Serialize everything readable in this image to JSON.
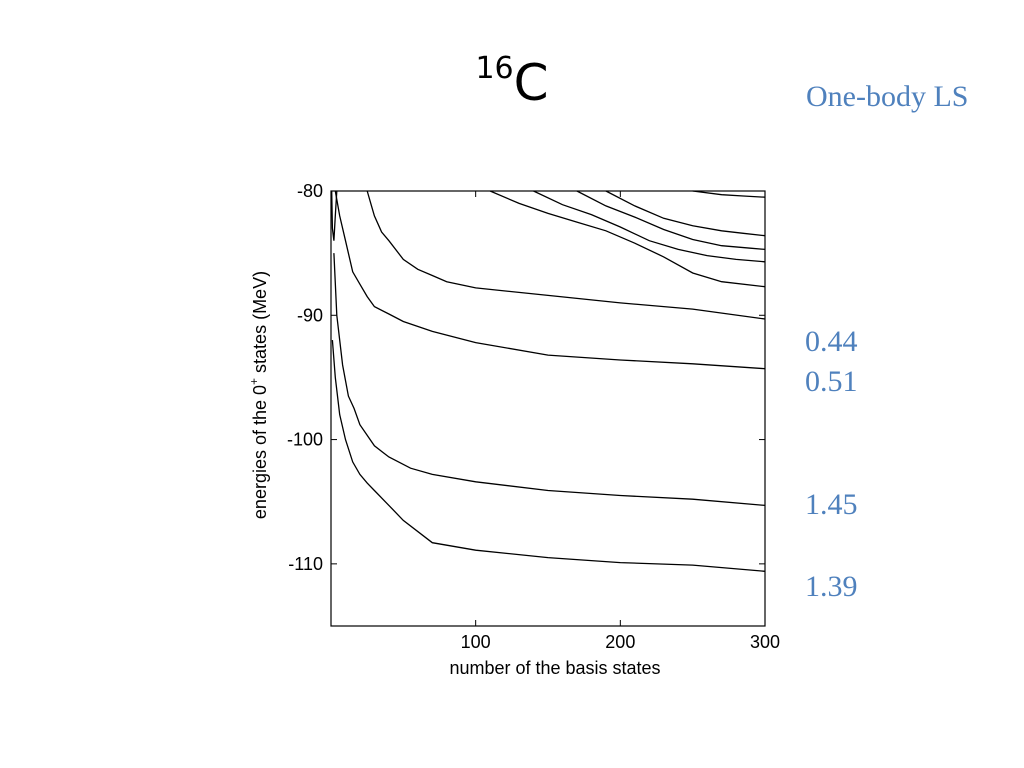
{
  "slide": {
    "title_mass": "16",
    "title_element": "C",
    "subtitle": "One-body LS",
    "side_values": [
      "0.44",
      "0.51",
      "1.45",
      "1.39"
    ],
    "text_color": "#4f81bd"
  },
  "chart_data": {
    "type": "line",
    "title": "",
    "xlabel": "number of the basis states",
    "ylabel_parts": [
      "energies of the 0",
      "+",
      " states (MeV)"
    ],
    "xlim": [
      0,
      300
    ],
    "ylim": [
      -115,
      -80
    ],
    "xticks": [
      100,
      200,
      300
    ],
    "yticks": [
      -80,
      -90,
      -100,
      -110
    ],
    "grid": false,
    "series": [
      {
        "x": [
          1,
          3,
          6,
          10,
          15,
          20,
          25,
          30,
          40,
          50,
          70,
          100,
          150,
          200,
          250,
          300
        ],
        "y": [
          -92,
          -95,
          -98,
          -100,
          -101.8,
          -102.8,
          -103.5,
          -104.1,
          -105.3,
          -106.5,
          -108.3,
          -108.9,
          -109.5,
          -109.9,
          -110.1,
          -110.6
        ]
      },
      {
        "x": [
          2,
          4,
          8,
          12,
          16,
          20,
          30,
          40,
          55,
          70,
          100,
          150,
          200,
          250,
          300
        ],
        "y": [
          -85,
          -90,
          -94,
          -96.5,
          -97.5,
          -98.8,
          -100.5,
          -101.4,
          -102.3,
          -102.8,
          -103.4,
          -104.1,
          -104.5,
          -104.8,
          -105.3
        ]
      },
      {
        "x": [
          3,
          6,
          10,
          15,
          20,
          25,
          30,
          40,
          50,
          70,
          100,
          150,
          200,
          250,
          300
        ],
        "y": [
          -80,
          -82,
          -84,
          -86.5,
          -87.5,
          -88.5,
          -89.3,
          -89.9,
          -90.5,
          -91.3,
          -92.2,
          -93.2,
          -93.6,
          -93.9,
          -94.3
        ]
      },
      {
        "x": [
          25,
          28,
          30,
          35,
          40,
          50,
          60,
          70,
          80,
          100,
          150,
          200,
          250,
          300
        ],
        "y": [
          -80,
          -81.2,
          -82,
          -83.3,
          -84,
          -85.5,
          -86.3,
          -86.8,
          -87.3,
          -87.8,
          -88.4,
          -89,
          -89.5,
          -90.3
        ]
      },
      {
        "x": [
          110,
          130,
          150,
          170,
          190,
          210,
          230,
          250,
          270,
          300
        ],
        "y": [
          -80,
          -81,
          -81.8,
          -82.5,
          -83.2,
          -84.2,
          -85.3,
          -86.6,
          -87.3,
          -87.7
        ]
      },
      {
        "x": [
          140,
          160,
          180,
          200,
          220,
          240,
          260,
          280,
          300
        ],
        "y": [
          -80,
          -81.1,
          -81.9,
          -82.9,
          -84,
          -84.7,
          -85.2,
          -85.5,
          -85.7
        ]
      },
      {
        "x": [
          170,
          190,
          210,
          230,
          250,
          270,
          290,
          300
        ],
        "y": [
          -80,
          -81.2,
          -82.1,
          -83.1,
          -83.9,
          -84.4,
          -84.6,
          -84.7
        ]
      },
      {
        "x": [
          190,
          210,
          230,
          250,
          270,
          285,
          300
        ],
        "y": [
          -80,
          -81.2,
          -82.2,
          -82.8,
          -83.2,
          -83.4,
          -83.6
        ]
      },
      {
        "x": [
          250,
          270,
          285,
          300
        ],
        "y": [
          -80,
          -80.3,
          -80.4,
          -80.5
        ]
      },
      {
        "x": [
          0.5,
          1,
          2,
          3,
          4
        ],
        "y": [
          -80,
          -83,
          -84,
          -82,
          -80
        ]
      }
    ]
  }
}
